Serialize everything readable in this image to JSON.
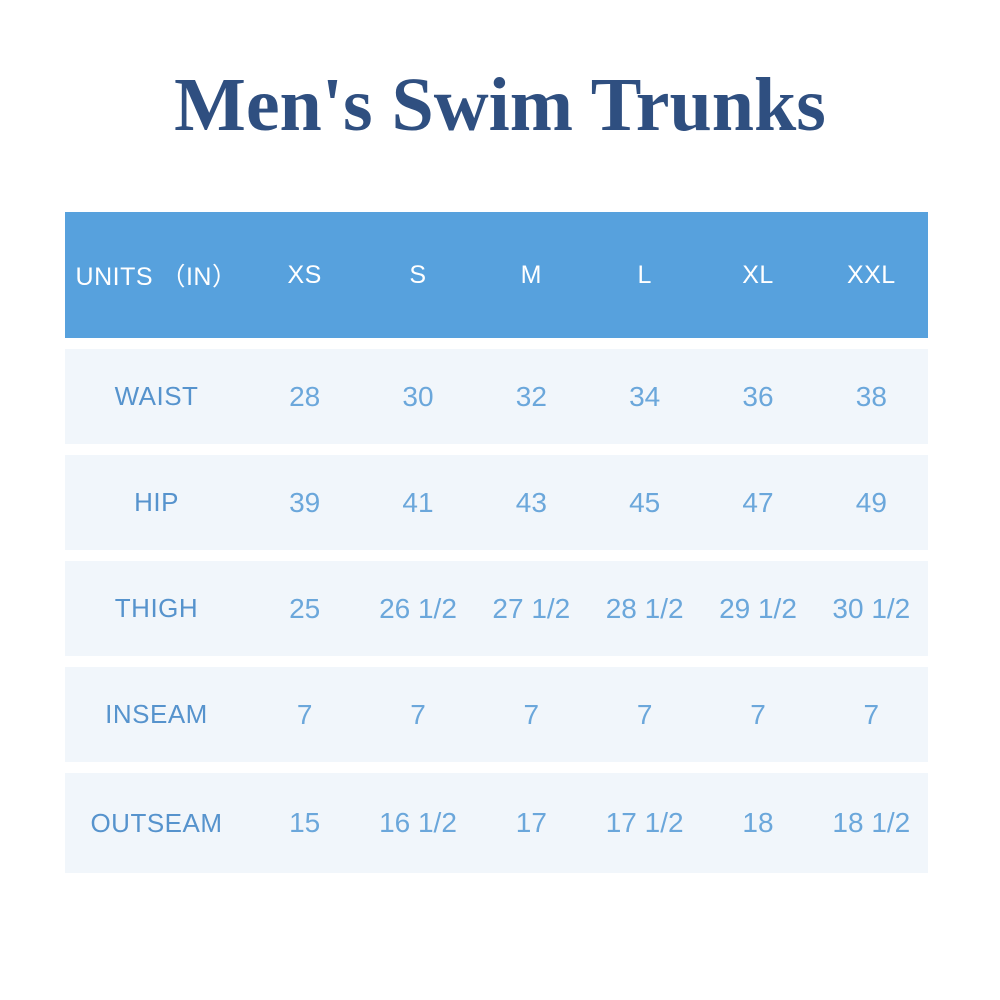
{
  "page": {
    "title": "Men's Swim Trunks"
  },
  "colors": {
    "page_bg": "#ffffff",
    "title_text": "#2f4f80",
    "header_bg": "#57a1dd",
    "header_text": "#ffffff",
    "row_bg": "#f1f6fb",
    "label_text": "#5693cd",
    "value_text": "#6ba7db"
  },
  "chart_data": {
    "type": "table",
    "title": "Men's Swim Trunks",
    "columns": [
      "UNITS （IN）",
      "XS",
      "S",
      "M",
      "L",
      "XL",
      "XXL"
    ],
    "rows": [
      {
        "label": "WAIST",
        "values": [
          "28",
          "30",
          "32",
          "34",
          "36",
          "38"
        ]
      },
      {
        "label": "HIP",
        "values": [
          "39",
          "41",
          "43",
          "45",
          "47",
          "49"
        ]
      },
      {
        "label": "THIGH",
        "values": [
          "25",
          "26 1/2",
          "27 1/2",
          "28 1/2",
          "29 1/2",
          "30 1/2"
        ]
      },
      {
        "label": "INSEAM",
        "values": [
          "7",
          "7",
          "7",
          "7",
          "7",
          "7"
        ]
      },
      {
        "label": "OUTSEAM",
        "values": [
          "15",
          "16 1/2",
          "17",
          "17 1/2",
          "18",
          "18 1/2"
        ]
      }
    ],
    "layout": {
      "header_position": "top",
      "first_column": "measurement-name",
      "grid": "rows separated by white gaps"
    }
  }
}
